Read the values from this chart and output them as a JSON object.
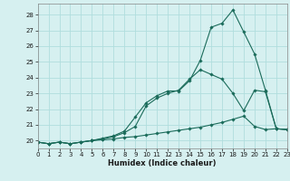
{
  "xlabel": "Humidex (Indice chaleur)",
  "bg_color": "#d6f0f0",
  "grid_color": "#b0dede",
  "line_color": "#1a6b5a",
  "xmin": 0,
  "xmax": 23,
  "ymin": 19.5,
  "ymax": 28.7,
  "yticks": [
    20,
    21,
    22,
    23,
    24,
    25,
    26,
    27,
    28
  ],
  "xticks": [
    0,
    1,
    2,
    3,
    4,
    5,
    6,
    7,
    8,
    9,
    10,
    11,
    12,
    13,
    14,
    15,
    16,
    17,
    18,
    19,
    20,
    21,
    22,
    23
  ],
  "series": [
    {
      "x": [
        0,
        1,
        2,
        3,
        4,
        5,
        6,
        7,
        8,
        9,
        10,
        11,
        12,
        13,
        14,
        15,
        16,
        17,
        18,
        19,
        20,
        21,
        22,
        23
      ],
      "y": [
        19.9,
        19.8,
        19.9,
        19.8,
        19.9,
        20.0,
        20.05,
        20.1,
        20.2,
        20.25,
        20.35,
        20.45,
        20.55,
        20.65,
        20.75,
        20.85,
        21.0,
        21.15,
        21.35,
        21.55,
        20.9,
        20.7,
        20.75,
        20.7
      ]
    },
    {
      "x": [
        0,
        1,
        2,
        3,
        4,
        5,
        6,
        7,
        8,
        9,
        10,
        11,
        12,
        13,
        14,
        15,
        16,
        17,
        18,
        19,
        20,
        21,
        22,
        23
      ],
      "y": [
        19.9,
        19.8,
        19.9,
        19.8,
        19.9,
        20.0,
        20.1,
        20.25,
        20.5,
        20.9,
        22.2,
        22.7,
        23.0,
        23.2,
        23.9,
        24.5,
        24.2,
        23.9,
        23.0,
        21.9,
        23.2,
        23.1,
        20.75,
        20.7
      ]
    },
    {
      "x": [
        0,
        1,
        2,
        3,
        4,
        5,
        6,
        7,
        8,
        9,
        10,
        11,
        12,
        13,
        14,
        15,
        16,
        17,
        18,
        19,
        20,
        21,
        22,
        23
      ],
      "y": [
        19.9,
        19.8,
        19.9,
        19.8,
        19.9,
        20.0,
        20.15,
        20.3,
        20.6,
        21.5,
        22.4,
        22.85,
        23.15,
        23.15,
        23.8,
        25.1,
        27.2,
        27.45,
        28.3,
        26.9,
        25.5,
        23.2,
        20.75,
        20.7
      ]
    }
  ]
}
